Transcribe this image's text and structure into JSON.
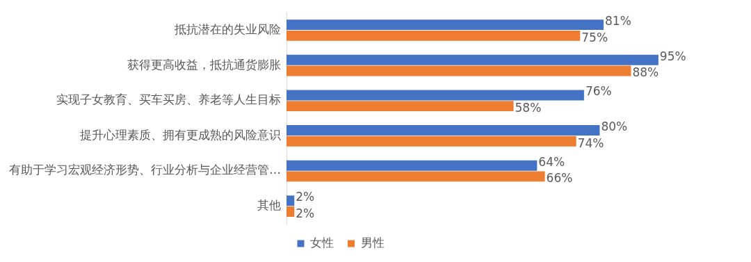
{
  "chart_data": {
    "type": "bar",
    "orientation": "horizontal",
    "categories": [
      "抵抗潜在的失业风险",
      "获得更高收益，抵抗通货膨胀",
      "实现子女教育、买车买房、养老等人生目标",
      "提升心理素质、拥有更成熟的风险意识",
      "有助于学习宏观经济形势、行业分析与企业经营管…",
      "其他"
    ],
    "series": [
      {
        "name": "女性",
        "color": "#4472c4",
        "values": [
          81,
          95,
          76,
          80,
          64,
          2
        ],
        "value_labels": [
          "81%",
          "95%",
          "76%",
          "80%",
          "64%",
          "2%"
        ]
      },
      {
        "name": "男性",
        "color": "#ed7d31",
        "values": [
          75,
          88,
          58,
          74,
          66,
          2
        ],
        "value_labels": [
          "75%",
          "88%",
          "58%",
          "74%",
          "66%",
          "2%"
        ]
      }
    ],
    "tick_labels": "y",
    "legend": "bottom"
  }
}
